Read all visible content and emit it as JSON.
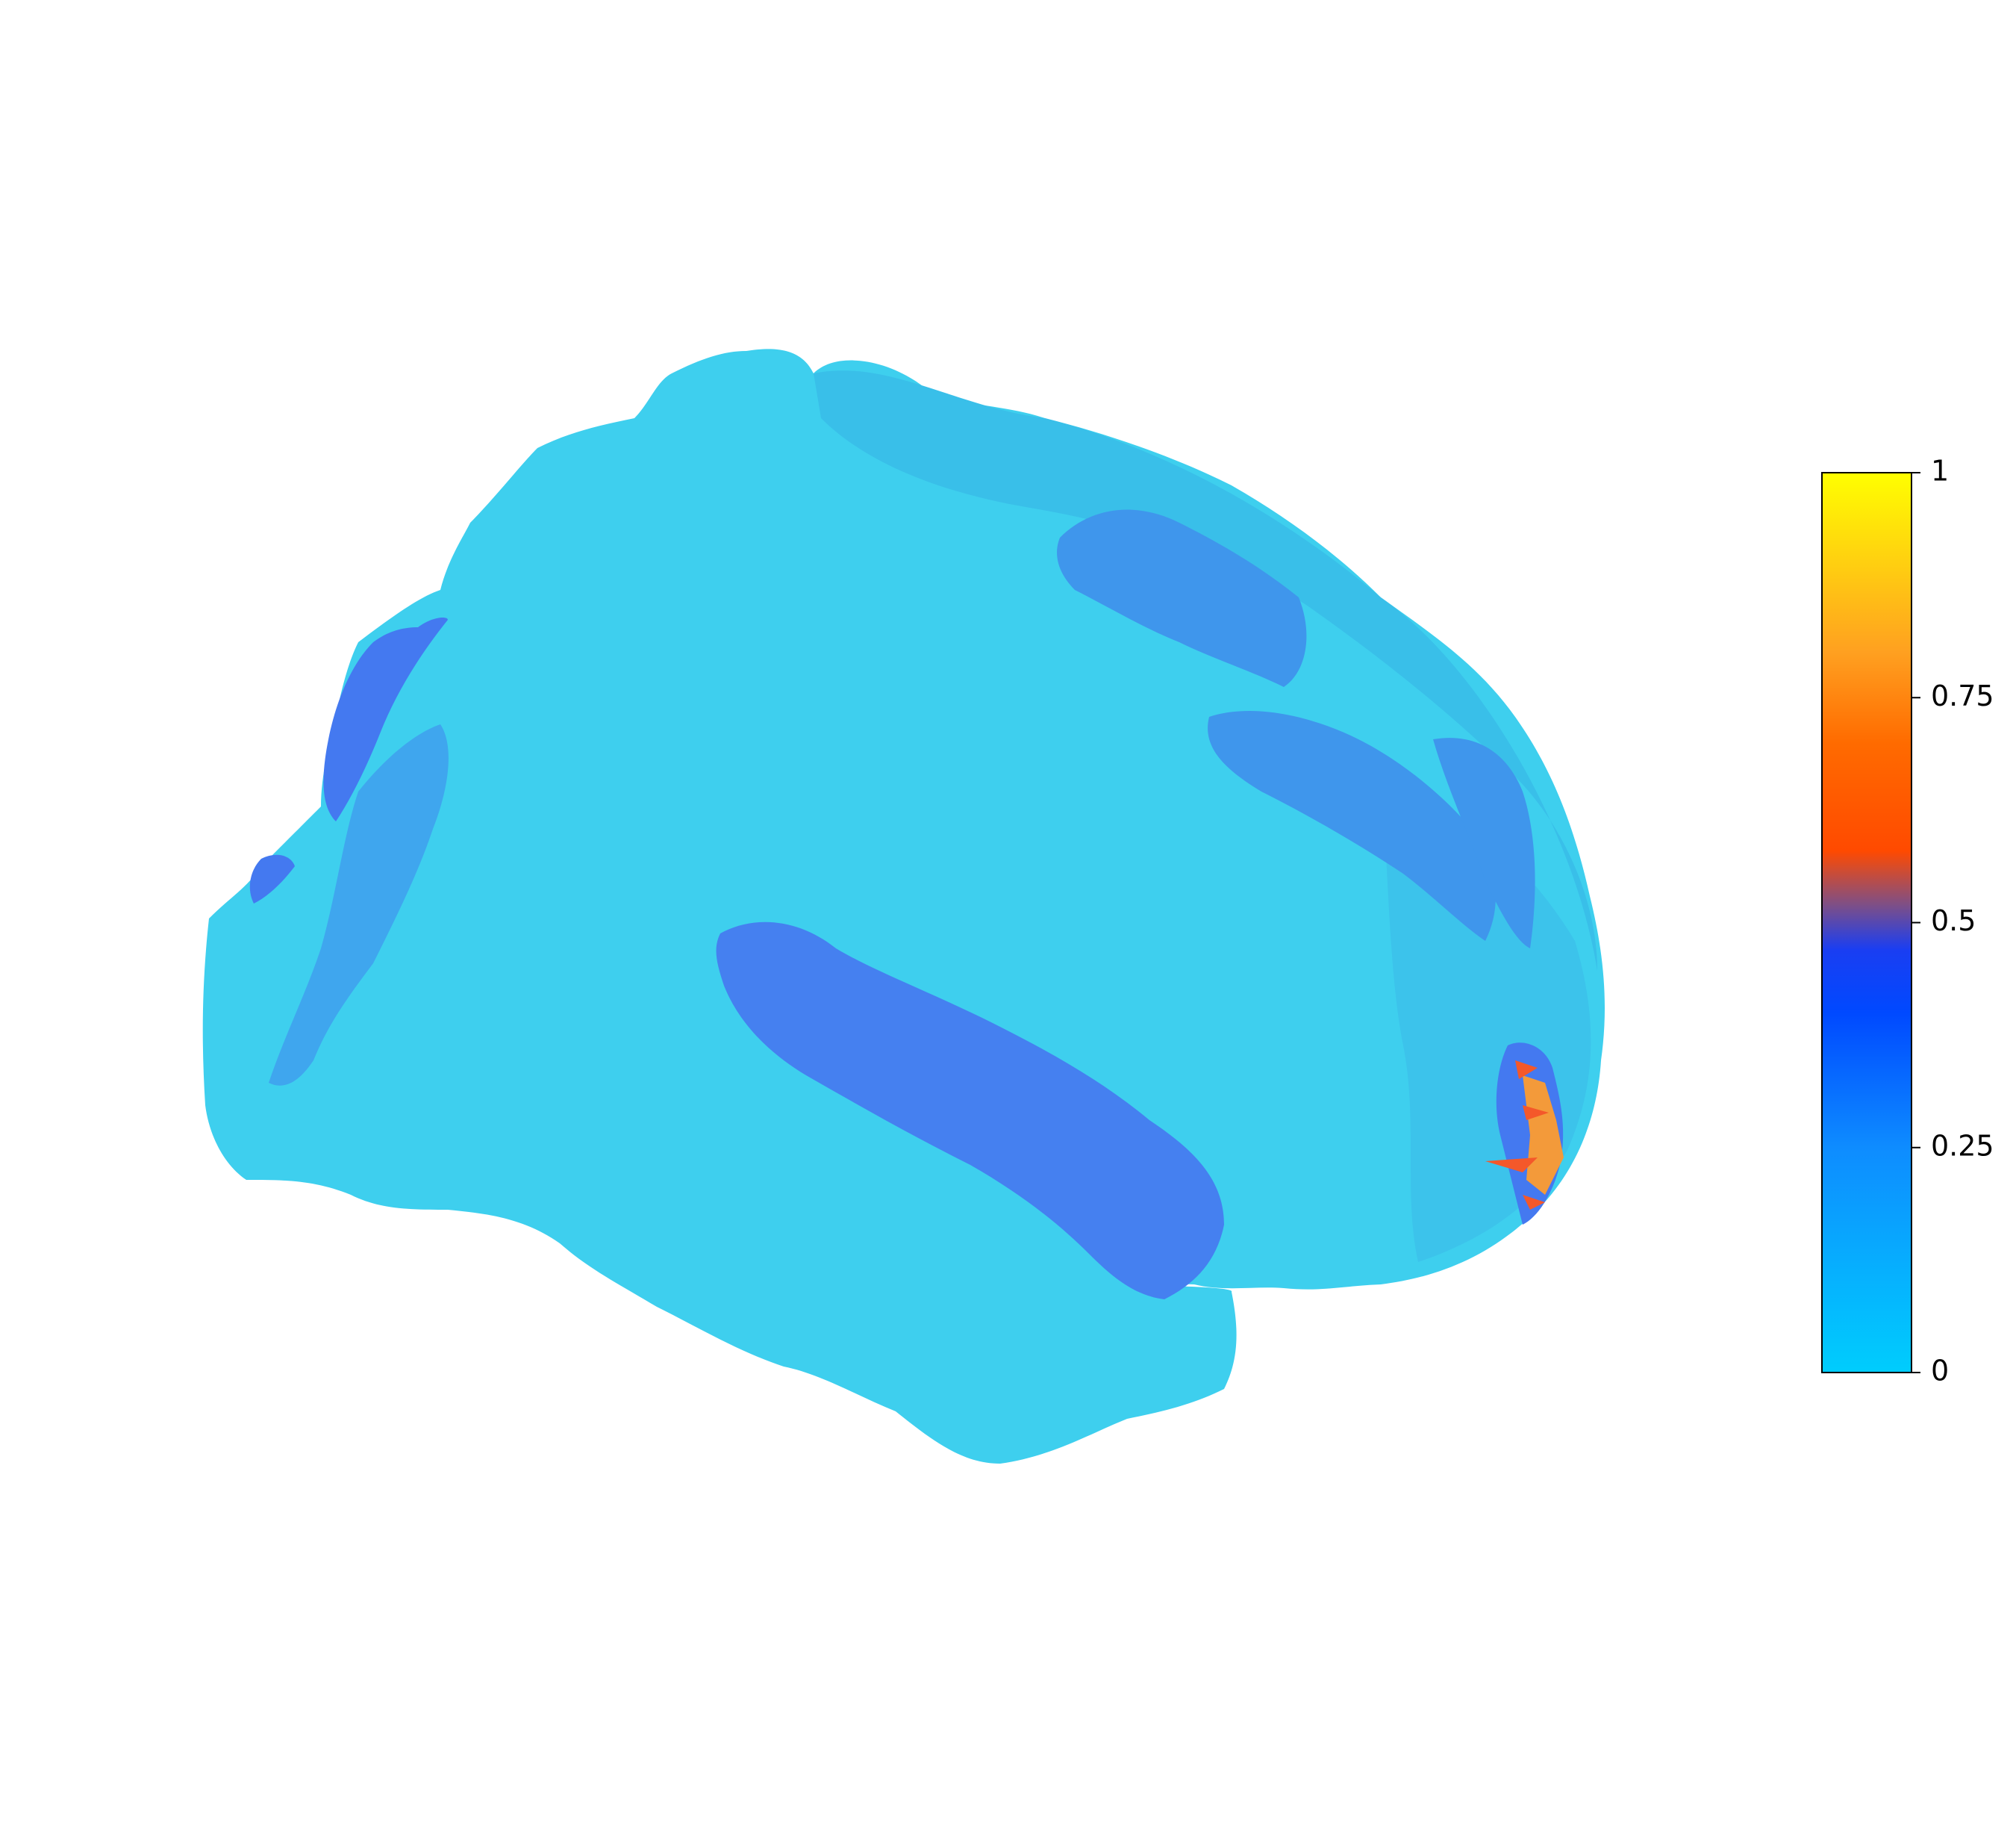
{
  "figure": {
    "subject": "brain-surface-lateral-view",
    "colors": {
      "background": "#ffffff",
      "surface_base": "#3ecfee",
      "surface_shade": "#36c4e6",
      "sulcus": "#3fa0ee",
      "sulcus_deep": "#4479f0",
      "hotspot_orange": "#f39a3a",
      "hotspot_red": "#f4582a"
    }
  },
  "colorbar": {
    "min": 0,
    "max": 1,
    "ticks": [
      {
        "value": 0,
        "label": "0"
      },
      {
        "value": 0.25,
        "label": "0.25"
      },
      {
        "value": 0.5,
        "label": "0.5"
      },
      {
        "value": 0.75,
        "label": "0.75"
      },
      {
        "value": 1,
        "label": "1"
      }
    ],
    "gradient": [
      {
        "value": 0.0,
        "color": "#00cdfd"
      },
      {
        "value": 0.25,
        "color": "#0e8cff"
      },
      {
        "value": 0.4,
        "color": "#0049ff"
      },
      {
        "value": 0.47,
        "color": "#1a3ef2"
      },
      {
        "value": 0.52,
        "color": "#7e4f86"
      },
      {
        "value": 0.58,
        "color": "#ff4a00"
      },
      {
        "value": 0.7,
        "color": "#ff6b00"
      },
      {
        "value": 0.8,
        "color": "#ffa020"
      },
      {
        "value": 1.0,
        "color": "#ffff00"
      }
    ]
  }
}
